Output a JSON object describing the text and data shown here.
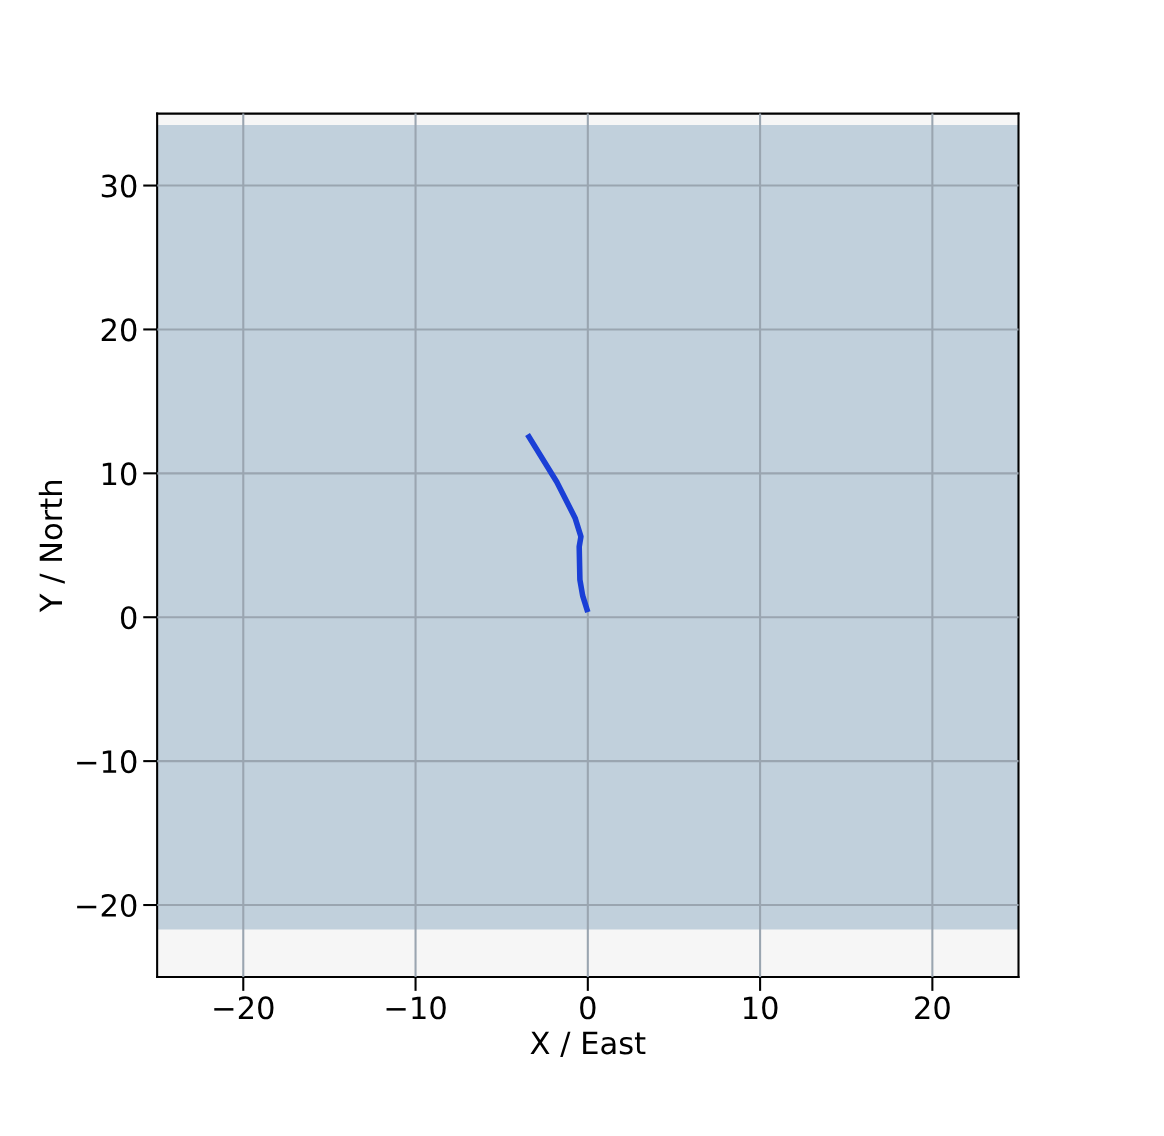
{
  "chart_data": {
    "type": "line",
    "xlabel": "X / East",
    "ylabel": "Y / North",
    "xlim": [
      -25,
      25
    ],
    "ylim": [
      -25,
      35
    ],
    "xticks": [
      -20,
      -10,
      0,
      10,
      20
    ],
    "yticks": [
      -20,
      -10,
      0,
      10,
      20,
      30
    ],
    "grid": true,
    "bands": [
      {
        "axis": "y",
        "from": -21.7,
        "to": 34.2,
        "color": "#c1d0dc"
      }
    ],
    "series": [
      {
        "color": "#1a3fd6",
        "x": [
          0.0,
          -0.3,
          -0.46,
          -0.5,
          -0.4,
          -0.74,
          -1.8,
          -3.5
        ],
        "values": [
          0.35,
          1.5,
          2.6,
          4.9,
          5.6,
          6.9,
          9.4,
          12.7
        ]
      }
    ]
  }
}
